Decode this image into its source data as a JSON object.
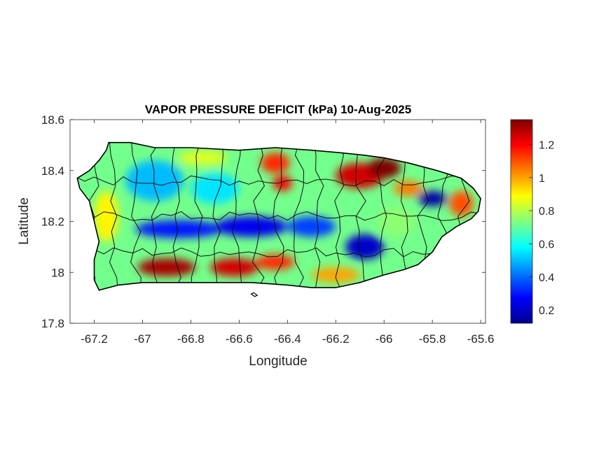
{
  "chart_data": {
    "type": "heatmap",
    "title": "VAPOR PRESSURE DEFICIT (kPa) 10-Aug-2025",
    "xlabel": "Longitude",
    "ylabel": "Latitude",
    "xlim": [
      -67.3,
      -65.58
    ],
    "ylim": [
      17.8,
      18.6
    ],
    "xticks": [
      -67.2,
      -67,
      -66.8,
      -66.6,
      -66.4,
      -66.2,
      -66,
      -65.8,
      -65.6
    ],
    "xtick_labels": [
      "-67.2",
      "-67",
      "-66.8",
      "-66.6",
      "-66.4",
      "-66.2",
      "-66",
      "-65.8",
      "-65.6"
    ],
    "yticks": [
      17.8,
      18,
      18.2,
      18.4,
      18.6
    ],
    "ytick_labels": [
      "17.8",
      "18",
      "18.2",
      "18.4",
      "18.6"
    ],
    "colorbar": {
      "colormap": "jet",
      "range": [
        0.12,
        1.35
      ],
      "ticks": [
        0.2,
        0.4,
        0.6,
        0.8,
        1,
        1.2
      ],
      "tick_labels": [
        "0.2",
        "0.4",
        "0.6",
        "0.8",
        "1",
        "1.2"
      ]
    },
    "grid": false,
    "region_outline": [
      [
        -67.27,
        18.37
      ],
      [
        -67.22,
        18.4
      ],
      [
        -67.18,
        18.44
      ],
      [
        -67.15,
        18.48
      ],
      [
        -67.14,
        18.51
      ],
      [
        -67.05,
        18.51
      ],
      [
        -66.95,
        18.49
      ],
      [
        -66.8,
        18.49
      ],
      [
        -66.6,
        18.48
      ],
      [
        -66.45,
        18.49
      ],
      [
        -66.3,
        18.48
      ],
      [
        -66.18,
        18.47
      ],
      [
        -66.08,
        18.46
      ],
      [
        -66.0,
        18.45
      ],
      [
        -65.9,
        18.43
      ],
      [
        -65.78,
        18.4
      ],
      [
        -65.68,
        18.37
      ],
      [
        -65.63,
        18.33
      ],
      [
        -65.6,
        18.29
      ],
      [
        -65.61,
        18.24
      ],
      [
        -65.64,
        18.21
      ],
      [
        -65.7,
        18.18
      ],
      [
        -65.76,
        18.14
      ],
      [
        -65.8,
        18.08
      ],
      [
        -65.86,
        18.03
      ],
      [
        -65.92,
        18.01
      ],
      [
        -66.0,
        17.99
      ],
      [
        -66.1,
        17.96
      ],
      [
        -66.2,
        17.94
      ],
      [
        -66.3,
        17.94
      ],
      [
        -66.4,
        17.95
      ],
      [
        -66.55,
        17.96
      ],
      [
        -66.7,
        17.96
      ],
      [
        -66.8,
        17.96
      ],
      [
        -66.9,
        17.96
      ],
      [
        -67.0,
        17.96
      ],
      [
        -67.1,
        17.95
      ],
      [
        -67.18,
        17.93
      ],
      [
        -67.2,
        17.97
      ],
      [
        -67.2,
        18.05
      ],
      [
        -67.18,
        18.12
      ],
      [
        -67.2,
        18.2
      ],
      [
        -67.22,
        18.28
      ],
      [
        -67.26,
        18.33
      ]
    ],
    "islets": [
      [
        [
          -66.55,
          17.915
        ],
        [
          -66.535,
          17.905
        ],
        [
          -66.525,
          17.91
        ],
        [
          -66.54,
          17.92
        ]
      ]
    ],
    "field_background": 0.72,
    "anomalies": [
      {
        "lon": -66.1,
        "lat": 18.38,
        "value": 1.25,
        "rx": 0.1,
        "ry": 0.05
      },
      {
        "lon": -66.0,
        "lat": 18.41,
        "value": 1.35,
        "rx": 0.07,
        "ry": 0.04
      },
      {
        "lon": -66.45,
        "lat": 18.43,
        "value": 1.15,
        "rx": 0.06,
        "ry": 0.04
      },
      {
        "lon": -66.42,
        "lat": 18.35,
        "value": 1.2,
        "rx": 0.04,
        "ry": 0.03
      },
      {
        "lon": -65.9,
        "lat": 18.33,
        "value": 1.05,
        "rx": 0.06,
        "ry": 0.03
      },
      {
        "lon": -65.68,
        "lat": 18.27,
        "value": 1.1,
        "rx": 0.05,
        "ry": 0.05
      },
      {
        "lon": -66.9,
        "lat": 18.02,
        "value": 1.3,
        "rx": 0.12,
        "ry": 0.035
      },
      {
        "lon": -66.62,
        "lat": 18.02,
        "value": 1.25,
        "rx": 0.1,
        "ry": 0.035
      },
      {
        "lon": -66.45,
        "lat": 18.04,
        "value": 1.15,
        "rx": 0.08,
        "ry": 0.03
      },
      {
        "lon": -66.2,
        "lat": 17.99,
        "value": 1.0,
        "rx": 0.1,
        "ry": 0.03
      },
      {
        "lon": -66.85,
        "lat": 18.17,
        "value": 0.3,
        "rx": 0.18,
        "ry": 0.035
      },
      {
        "lon": -66.55,
        "lat": 18.18,
        "value": 0.25,
        "rx": 0.15,
        "ry": 0.04
      },
      {
        "lon": -66.3,
        "lat": 18.18,
        "value": 0.35,
        "rx": 0.1,
        "ry": 0.04
      },
      {
        "lon": -66.08,
        "lat": 18.1,
        "value": 0.2,
        "rx": 0.08,
        "ry": 0.05
      },
      {
        "lon": -65.8,
        "lat": 18.29,
        "value": 0.15,
        "rx": 0.06,
        "ry": 0.03
      },
      {
        "lon": -66.95,
        "lat": 18.36,
        "value": 0.5,
        "rx": 0.12,
        "ry": 0.08
      },
      {
        "lon": -66.7,
        "lat": 18.33,
        "value": 0.55,
        "rx": 0.1,
        "ry": 0.06
      },
      {
        "lon": -66.75,
        "lat": 18.45,
        "value": 0.85,
        "rx": 0.1,
        "ry": 0.03
      },
      {
        "lon": -67.15,
        "lat": 18.22,
        "value": 0.9,
        "rx": 0.05,
        "ry": 0.1
      },
      {
        "lon": -65.95,
        "lat": 18.2,
        "value": 0.75,
        "rx": 0.08,
        "ry": 0.06
      }
    ]
  }
}
